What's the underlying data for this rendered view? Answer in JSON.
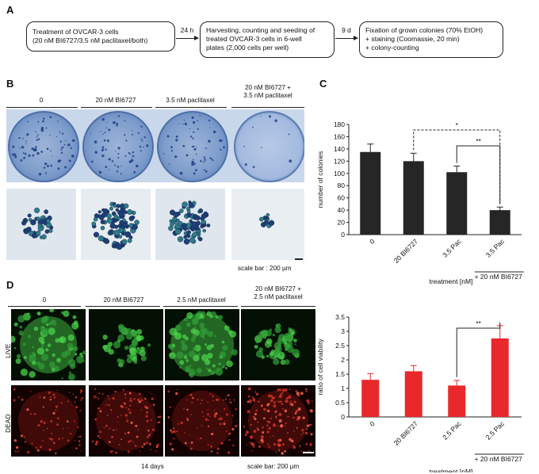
{
  "panels": {
    "a": {
      "letter": "A",
      "steps": [
        {
          "line1": "Treatment of OVCAR-3 cells",
          "line2": "(20 nM BI6727/3.5 nM paclitaxel/both)",
          "line3": ""
        },
        {
          "line1": "Harvesting, counting and seeding of",
          "line2": "treated OVCAR-3 cells in 6-well",
          "line3": "plates (2,000 cells per well)"
        },
        {
          "line1": "Fixation of grown colonies (70% EtOH)",
          "line2": "+ staining (Coomassie, 20 min)",
          "line3": "+ colony-counting"
        }
      ],
      "arrows": [
        "24 h",
        "9 d"
      ]
    },
    "b": {
      "letter": "B",
      "columns": [
        "0",
        "20 nM BI6727",
        "3.5 nM paclitaxel",
        "20 nM BI6727 +",
        "3.5 nM paclitaxel"
      ],
      "scale_bar": "scale bar : 200 µm"
    },
    "c": {
      "letter": "C"
    },
    "d": {
      "letter": "D",
      "columns": [
        "0",
        "20 nM BI6727",
        "2.5 nM paclitaxel",
        "20 nM BI6727 +",
        "2.5 nM paclitaxel"
      ],
      "rows": [
        "LIVE",
        "DEAD"
      ],
      "days": "14 days",
      "scale_bar": "scale bar: 200 µm"
    }
  },
  "chart_data": [
    {
      "type": "bar",
      "panel": "C",
      "categories": [
        "0",
        "20 BI6727",
        "3.5 Pac",
        "3.5 Pac"
      ],
      "category_note": "+ 20 nM BI6727",
      "values": [
        135,
        120,
        102,
        40
      ],
      "errors": [
        13,
        13,
        10,
        5
      ],
      "ylabel": "number of colonies",
      "xlabel": "treatment [nM]",
      "ylim": [
        0,
        180
      ],
      "yticks": [
        0,
        20,
        40,
        60,
        80,
        100,
        120,
        140,
        160,
        180
      ],
      "bar_color": "#262626",
      "significance": [
        {
          "from": 1,
          "to": 3,
          "label": "*",
          "style": "dashed"
        },
        {
          "from": 2,
          "to": 3,
          "label": "**",
          "style": "solid"
        }
      ]
    },
    {
      "type": "bar",
      "panel": "D",
      "categories": [
        "0",
        "20 BI6727",
        "2.5 Pac",
        "2.5 Pac"
      ],
      "category_note": "+ 20 nM BI6727",
      "values": [
        1.3,
        1.6,
        1.1,
        2.75
      ],
      "errors": [
        0.22,
        0.2,
        0.18,
        0.45
      ],
      "ylabel": "ratio of cell viability",
      "xlabel": "treatment [nM]",
      "ylim": [
        0,
        3.5
      ],
      "yticks": [
        0,
        0.5,
        1,
        1.5,
        2,
        2.5,
        3,
        3.5
      ],
      "bar_color": "#e8282a",
      "significance": [
        {
          "from": 2,
          "to": 3,
          "label": "**",
          "style": "solid"
        }
      ]
    }
  ]
}
